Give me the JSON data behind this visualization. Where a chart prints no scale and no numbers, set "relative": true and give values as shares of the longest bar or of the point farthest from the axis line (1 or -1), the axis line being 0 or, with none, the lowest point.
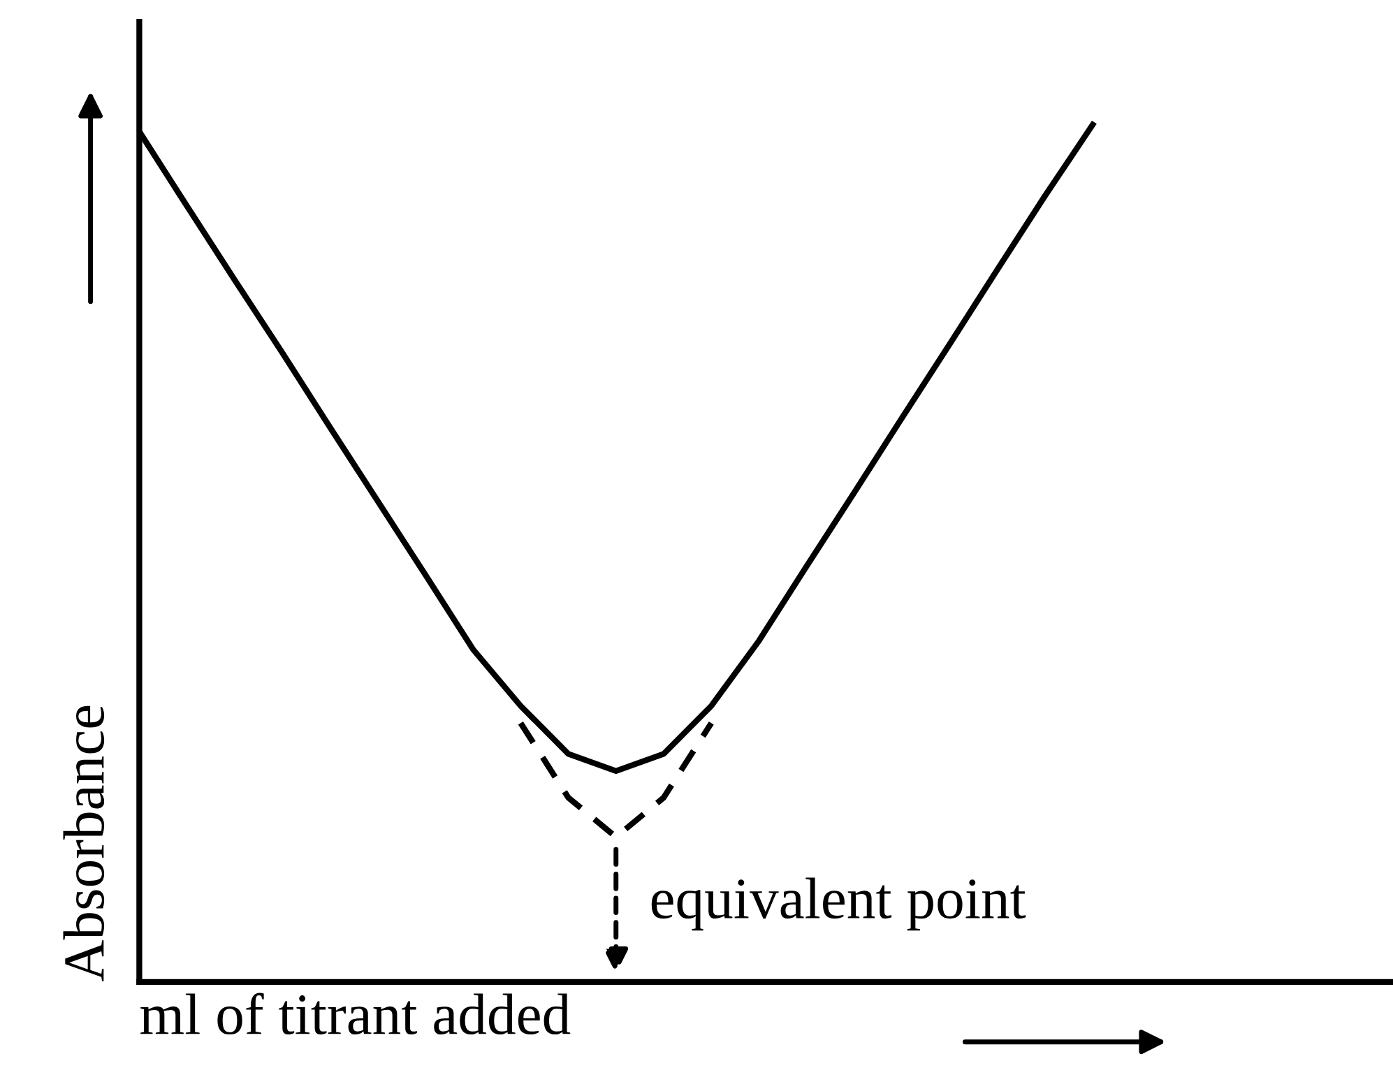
{
  "chart_data": {
    "type": "line",
    "relative": true,
    "categories": [
      null,
      null,
      null,
      null,
      null,
      null,
      null,
      null,
      null,
      null,
      null,
      null,
      null,
      null,
      null,
      null,
      null,
      null,
      null,
      null,
      null,
      null,
      null,
      null,
      null,
      null,
      null
    ],
    "xlabel": "ml of titrant added",
    "ylabel": "Absorbance",
    "annotations": [
      "equivalent point"
    ],
    "series": [
      {
        "color": "#000000",
        "line_style": "solid",
        "values": [
          0.992,
          0.905,
          0.819,
          0.734,
          0.647,
          0.561,
          0.475,
          0.388,
          0.322,
          0.266,
          0.246,
          0.266,
          0.322,
          0.398,
          0.485,
          0.571,
          0.658,
          0.744,
          0.831,
          0.917,
          1,
          null,
          null,
          null,
          null,
          null,
          null
        ]
      },
      {
        "color": "#000000",
        "line_style": "dashed",
        "values": [
          null,
          null,
          null,
          null,
          null,
          null,
          null,
          null,
          0.302,
          0.215,
          0.169,
          0.215,
          0.302,
          null,
          null,
          null,
          null,
          null,
          null,
          null,
          null,
          null,
          null,
          null,
          null,
          null,
          null
        ]
      }
    ],
    "marker": "none",
    "legend": false
  }
}
